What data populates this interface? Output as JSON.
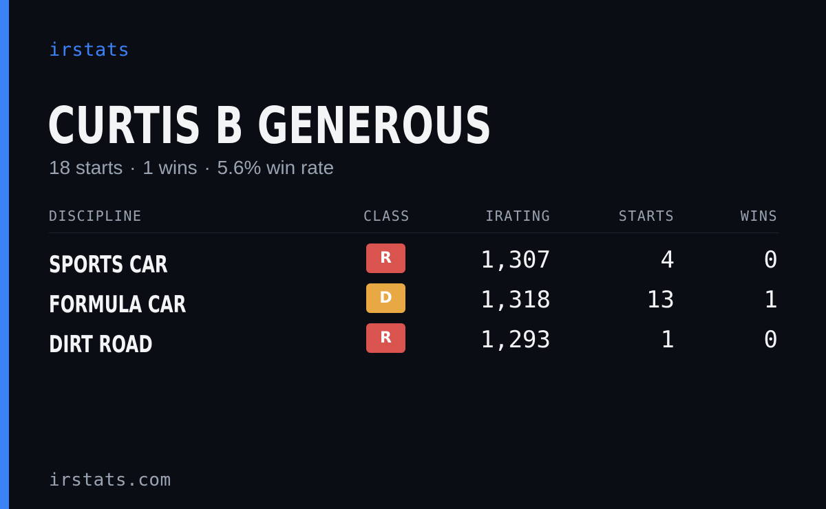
{
  "brand": "irstats",
  "driver": {
    "name": "CURTIS B GENEROUS",
    "starts": "18 starts",
    "wins": "1 wins",
    "win_rate": "5.6% win rate",
    "separator": "·"
  },
  "table": {
    "headers": {
      "discipline": "DISCIPLINE",
      "class": "CLASS",
      "irating": "IRATING",
      "starts": "STARTS",
      "wins": "WINS"
    },
    "rows": [
      {
        "discipline": "SPORTS CAR",
        "class": "R",
        "class_color": "#d9534f",
        "irating": "1,307",
        "starts": "4",
        "wins": "0"
      },
      {
        "discipline": "FORMULA CAR",
        "class": "D",
        "class_color": "#e8a945",
        "irating": "1,318",
        "starts": "13",
        "wins": "1"
      },
      {
        "discipline": "DIRT ROAD",
        "class": "R",
        "class_color": "#d9534f",
        "irating": "1,293",
        "starts": "1",
        "wins": "0"
      }
    ]
  },
  "footer": {
    "domain": "irstats.com"
  },
  "colors": {
    "accent": "#3b82f6",
    "background": "#0a0d14",
    "text_primary": "#f3f4f6",
    "text_muted": "#9aa3b2"
  }
}
